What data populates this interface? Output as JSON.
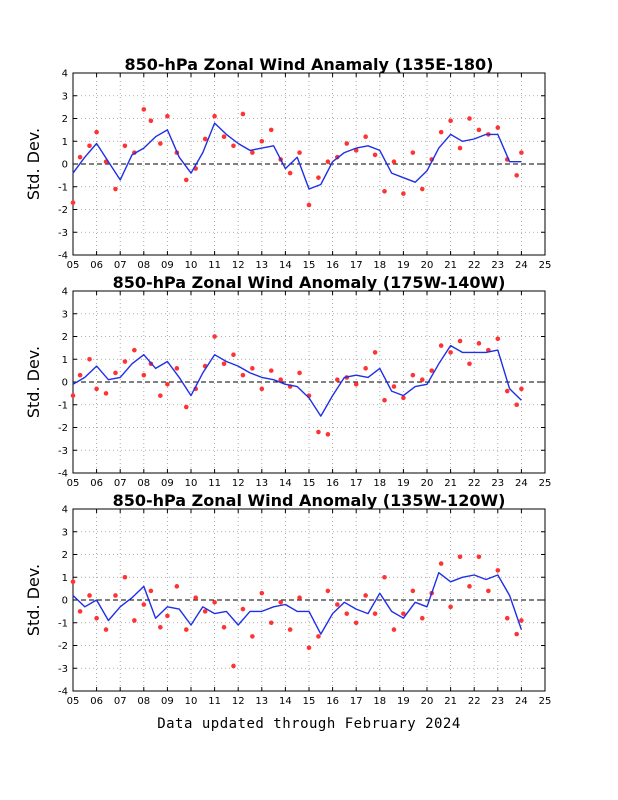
{
  "footer": "Data updated through February 2024",
  "colors": {
    "line": "#1f2fe6",
    "points": "#ff3333",
    "axis": "#000000",
    "grid": "#999999"
  },
  "chart_data": [
    {
      "type": "line",
      "title": "850-hPa Zonal Wind Anamaly (135E-180)",
      "ylabel": "Std. Dev.",
      "xlabel": "",
      "xlim": [
        5,
        25
      ],
      "ylim": [
        -4,
        4
      ],
      "x_ticks": [
        "05",
        "06",
        "07",
        "08",
        "09",
        "10",
        "11",
        "12",
        "13",
        "14",
        "15",
        "16",
        "17",
        "18",
        "19",
        "20",
        "21",
        "22",
        "23",
        "24",
        "25"
      ],
      "y_ticks": [
        "-4",
        "-3",
        "-2",
        "-1",
        "0",
        "1",
        "2",
        "3",
        "4"
      ],
      "grid": true,
      "zero_line": "dashed",
      "series": [
        {
          "kind": "line",
          "x": [
            5.0,
            5.5,
            6.0,
            6.5,
            7.0,
            7.5,
            8.0,
            8.5,
            9.0,
            9.5,
            10.0,
            10.5,
            11.0,
            11.5,
            12.0,
            12.5,
            13.0,
            13.5,
            14.0,
            14.5,
            15.0,
            15.5,
            16.0,
            16.5,
            17.0,
            17.5,
            18.0,
            18.5,
            19.0,
            19.5,
            20.0,
            20.5,
            21.0,
            21.5,
            22.0,
            22.5,
            23.0,
            23.5,
            24.0
          ],
          "y": [
            -0.4,
            0.3,
            0.9,
            0.1,
            -0.7,
            0.4,
            0.7,
            1.2,
            1.5,
            0.3,
            -0.4,
            0.5,
            1.8,
            1.3,
            0.9,
            0.6,
            0.7,
            0.8,
            -0.2,
            0.3,
            -1.1,
            -0.9,
            0.1,
            0.5,
            0.7,
            0.8,
            0.6,
            -0.4,
            -0.6,
            -0.8,
            -0.3,
            0.7,
            1.3,
            1.0,
            1.1,
            1.3,
            1.3,
            0.1,
            0.1
          ]
        },
        {
          "kind": "points",
          "x": [
            5.0,
            5.3,
            5.7,
            6.0,
            6.4,
            6.8,
            7.2,
            7.6,
            8.0,
            8.3,
            8.7,
            9.0,
            9.4,
            9.8,
            10.2,
            10.6,
            11.0,
            11.4,
            11.8,
            12.2,
            12.6,
            13.0,
            13.4,
            13.8,
            14.2,
            14.6,
            15.0,
            15.4,
            15.8,
            16.2,
            16.6,
            17.0,
            17.4,
            17.8,
            18.2,
            18.6,
            19.0,
            19.4,
            19.8,
            20.2,
            20.6,
            21.0,
            21.4,
            21.8,
            22.2,
            22.6,
            23.0,
            23.4,
            23.8,
            24.0
          ],
          "y": [
            -1.7,
            0.3,
            0.8,
            1.4,
            0.1,
            -1.1,
            0.8,
            0.5,
            2.4,
            1.9,
            0.9,
            2.1,
            0.5,
            -0.7,
            -0.2,
            1.1,
            2.1,
            1.2,
            0.8,
            2.2,
            0.5,
            1.0,
            1.5,
            0.2,
            -0.4,
            0.5,
            -1.8,
            -0.6,
            0.1,
            0.3,
            0.9,
            0.6,
            1.2,
            0.4,
            -1.2,
            0.1,
            -1.3,
            0.5,
            -1.1,
            0.2,
            1.4,
            1.9,
            0.7,
            2.0,
            1.5,
            1.3,
            1.6,
            0.2,
            -0.5,
            0.5
          ]
        }
      ]
    },
    {
      "type": "line",
      "title": "850-hPa Zonal Wind Anomaly (175W-140W)",
      "ylabel": "Std. Dev.",
      "xlabel": "",
      "xlim": [
        5,
        25
      ],
      "ylim": [
        -4,
        4
      ],
      "x_ticks": [
        "05",
        "06",
        "07",
        "08",
        "09",
        "10",
        "11",
        "12",
        "13",
        "14",
        "15",
        "16",
        "17",
        "18",
        "19",
        "20",
        "21",
        "22",
        "23",
        "24",
        "25"
      ],
      "y_ticks": [
        "-4",
        "-3",
        "-2",
        "-1",
        "0",
        "1",
        "2",
        "3",
        "4"
      ],
      "grid": true,
      "zero_line": "dashed",
      "series": [
        {
          "kind": "line",
          "x": [
            5.0,
            5.5,
            6.0,
            6.5,
            7.0,
            7.5,
            8.0,
            8.5,
            9.0,
            9.5,
            10.0,
            10.5,
            11.0,
            11.5,
            12.0,
            12.5,
            13.0,
            13.5,
            14.0,
            14.5,
            15.0,
            15.5,
            16.0,
            16.5,
            17.0,
            17.5,
            18.0,
            18.5,
            19.0,
            19.5,
            20.0,
            20.5,
            21.0,
            21.5,
            22.0,
            22.5,
            23.0,
            23.5,
            24.0
          ],
          "y": [
            -0.1,
            0.2,
            0.7,
            0.1,
            0.2,
            0.8,
            1.2,
            0.6,
            0.9,
            0.2,
            -0.6,
            0.4,
            1.2,
            0.9,
            0.7,
            0.4,
            0.2,
            0.1,
            -0.1,
            -0.2,
            -0.7,
            -1.5,
            -0.6,
            0.2,
            0.3,
            0.2,
            0.6,
            -0.4,
            -0.6,
            -0.2,
            -0.1,
            0.8,
            1.6,
            1.3,
            1.3,
            1.3,
            1.4,
            -0.3,
            -0.8
          ]
        },
        {
          "kind": "points",
          "x": [
            5.0,
            5.3,
            5.7,
            6.0,
            6.4,
            6.8,
            7.2,
            7.6,
            8.0,
            8.3,
            8.7,
            9.0,
            9.4,
            9.8,
            10.2,
            10.6,
            11.0,
            11.4,
            11.8,
            12.2,
            12.6,
            13.0,
            13.4,
            13.8,
            14.2,
            14.6,
            15.0,
            15.4,
            15.8,
            16.2,
            16.6,
            17.0,
            17.4,
            17.8,
            18.2,
            18.6,
            19.0,
            19.4,
            19.8,
            20.2,
            20.6,
            21.0,
            21.4,
            21.8,
            22.2,
            22.6,
            23.0,
            23.4,
            23.8,
            24.0
          ],
          "y": [
            -0.6,
            0.3,
            1.0,
            -0.3,
            -0.5,
            0.4,
            0.9,
            1.4,
            0.3,
            0.8,
            -0.6,
            -0.1,
            0.6,
            -1.1,
            -0.3,
            0.7,
            2.0,
            0.8,
            1.2,
            0.3,
            0.6,
            -0.3,
            0.5,
            0.1,
            -0.2,
            0.4,
            -0.6,
            -2.2,
            -2.3,
            0.1,
            0.2,
            -0.1,
            0.6,
            1.3,
            -0.8,
            -0.2,
            -0.7,
            0.3,
            0.1,
            0.5,
            1.6,
            1.3,
            1.8,
            0.8,
            1.7,
            1.4,
            1.9,
            -0.4,
            -1.0,
            -0.3
          ]
        }
      ]
    },
    {
      "type": "line",
      "title": "850-hPa Zonal Wind Anomaly (135W-120W)",
      "ylabel": "Std. Dev.",
      "xlabel": "",
      "xlim": [
        5,
        25
      ],
      "ylim": [
        -4,
        4
      ],
      "x_ticks": [
        "05",
        "06",
        "07",
        "08",
        "09",
        "10",
        "11",
        "12",
        "13",
        "14",
        "15",
        "16",
        "17",
        "18",
        "19",
        "20",
        "21",
        "22",
        "23",
        "24",
        "25"
      ],
      "y_ticks": [
        "-4",
        "-3",
        "-2",
        "-1",
        "0",
        "1",
        "2",
        "3",
        "4"
      ],
      "grid": true,
      "zero_line": "dashed",
      "series": [
        {
          "kind": "line",
          "x": [
            5.0,
            5.5,
            6.0,
            6.5,
            7.0,
            7.5,
            8.0,
            8.5,
            9.0,
            9.5,
            10.0,
            10.5,
            11.0,
            11.5,
            12.0,
            12.5,
            13.0,
            13.5,
            14.0,
            14.5,
            15.0,
            15.5,
            16.0,
            16.5,
            17.0,
            17.5,
            18.0,
            18.5,
            19.0,
            19.5,
            20.0,
            20.5,
            21.0,
            21.5,
            22.0,
            22.5,
            23.0,
            23.5,
            24.0
          ],
          "y": [
            0.2,
            -0.3,
            0.0,
            -0.9,
            -0.3,
            0.1,
            0.6,
            -0.8,
            -0.3,
            -0.4,
            -1.1,
            -0.3,
            -0.6,
            -0.5,
            -1.1,
            -0.5,
            -0.5,
            -0.3,
            -0.2,
            -0.5,
            -0.5,
            -1.5,
            -0.6,
            -0.1,
            -0.4,
            -0.6,
            0.3,
            -0.5,
            -0.8,
            -0.1,
            -0.3,
            1.2,
            0.8,
            1.0,
            1.1,
            0.9,
            1.1,
            0.2,
            -1.3
          ]
        },
        {
          "kind": "points",
          "x": [
            5.0,
            5.3,
            5.7,
            6.0,
            6.4,
            6.8,
            7.2,
            7.6,
            8.0,
            8.3,
            8.7,
            9.0,
            9.4,
            9.8,
            10.2,
            10.6,
            11.0,
            11.4,
            11.8,
            12.2,
            12.6,
            13.0,
            13.4,
            13.8,
            14.2,
            14.6,
            15.0,
            15.4,
            15.8,
            16.2,
            16.6,
            17.0,
            17.4,
            17.8,
            18.2,
            18.6,
            19.0,
            19.4,
            19.8,
            20.2,
            20.6,
            21.0,
            21.4,
            21.8,
            22.2,
            22.6,
            23.0,
            23.4,
            23.8,
            24.0
          ],
          "y": [
            0.8,
            -0.5,
            0.2,
            -0.8,
            -1.3,
            0.2,
            1.0,
            -0.9,
            -0.2,
            0.4,
            -1.2,
            -0.7,
            0.6,
            -1.3,
            0.1,
            -0.5,
            -0.1,
            -1.2,
            -2.9,
            -0.4,
            -1.6,
            0.3,
            -1.0,
            -0.1,
            -1.3,
            0.1,
            -2.1,
            -1.6,
            0.4,
            -0.2,
            -0.6,
            -1.0,
            0.2,
            -0.6,
            1.0,
            -1.3,
            -0.6,
            0.4,
            -0.8,
            0.3,
            1.6,
            -0.3,
            1.9,
            0.6,
            1.9,
            0.4,
            1.3,
            -0.8,
            -1.5,
            -0.9
          ]
        }
      ]
    }
  ]
}
